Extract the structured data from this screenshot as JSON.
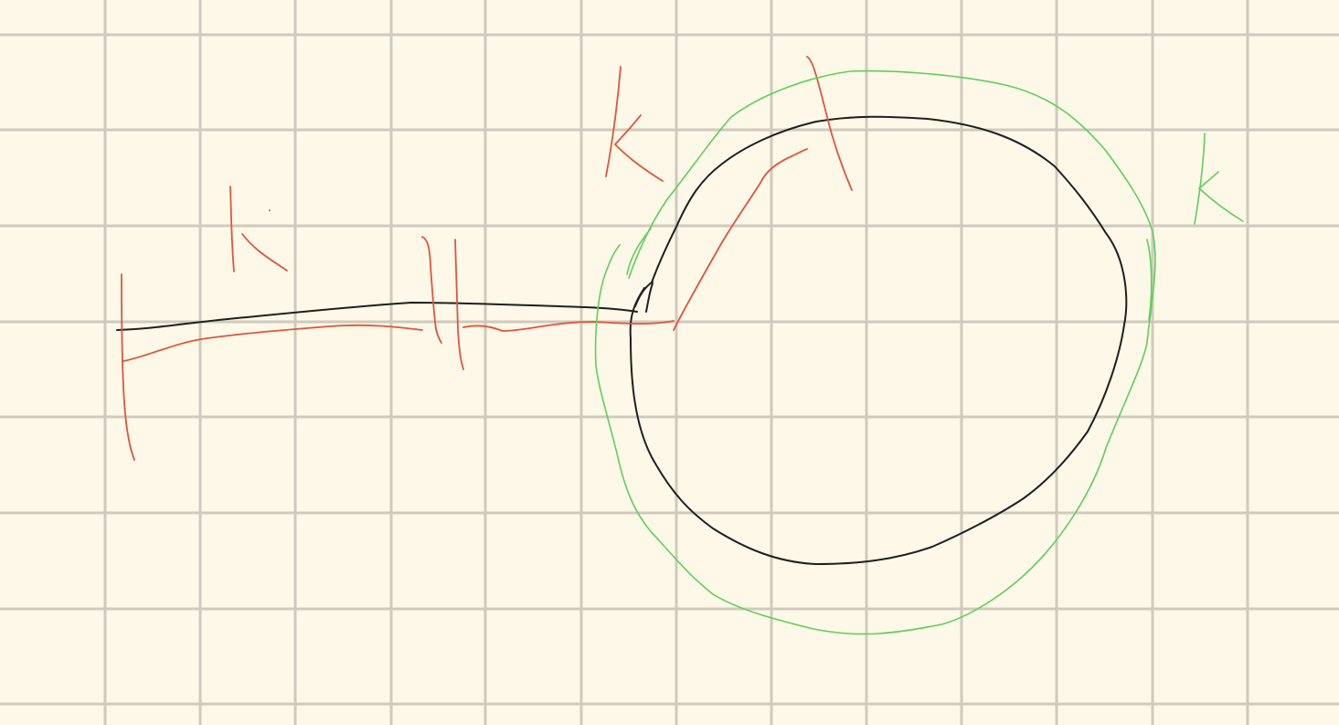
{
  "canvas": {
    "background_color": "#fdf8e8",
    "grid_color": "#cfcabd",
    "grid_style": "square graph paper"
  },
  "ink_colors": {
    "black": "#1f1f1f",
    "red": "#e0553a",
    "green": "#5fcf5a"
  },
  "strokes": {
    "count_black": 4,
    "count_red": 11,
    "count_green": 5
  }
}
